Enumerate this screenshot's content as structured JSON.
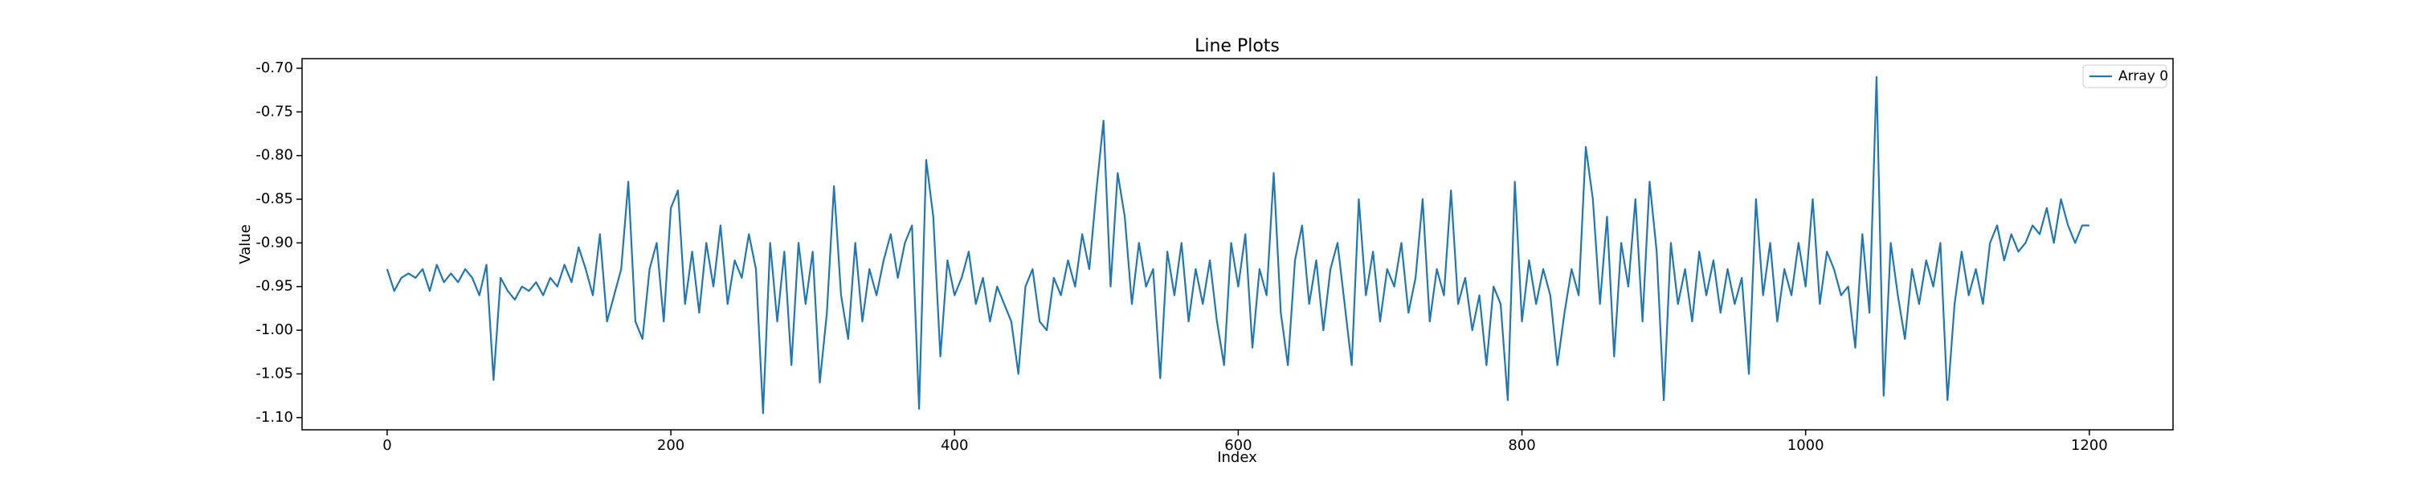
{
  "chart_data": {
    "type": "line",
    "title": "Line Plots",
    "x_label": "Index",
    "y_label": "Value",
    "legend": "upper right",
    "grid": false,
    "xlim": [
      -60,
      1259
    ],
    "ylim": [
      -1.114,
      -0.689
    ],
    "xticks": [
      0,
      200,
      400,
      600,
      800,
      1000,
      1200
    ],
    "yticks": [
      {
        "value": -0.7,
        "label": "-0.70"
      },
      {
        "value": -0.75,
        "label": "-0.75"
      },
      {
        "value": -0.8,
        "label": "-0.80"
      },
      {
        "value": -0.85,
        "label": "-0.85"
      },
      {
        "value": -0.9,
        "label": "-0.90"
      },
      {
        "value": -0.95,
        "label": "-0.95"
      },
      {
        "value": -1.0,
        "label": "-1.00"
      },
      {
        "value": -1.05,
        "label": "-1.05"
      },
      {
        "value": -1.1,
        "label": "-1.10"
      }
    ],
    "x": [
      0,
      5,
      10,
      15,
      20,
      25,
      30,
      35,
      40,
      45,
      50,
      55,
      60,
      65,
      70,
      75,
      80,
      85,
      90,
      95,
      100,
      105,
      110,
      115,
      120,
      125,
      130,
      135,
      140,
      145,
      150,
      155,
      160,
      165,
      170,
      175,
      180,
      185,
      190,
      195,
      200,
      205,
      210,
      215,
      220,
      225,
      230,
      235,
      240,
      245,
      250,
      255,
      260,
      265,
      270,
      275,
      280,
      285,
      290,
      295,
      300,
      305,
      310,
      315,
      320,
      325,
      330,
      335,
      340,
      345,
      350,
      355,
      360,
      365,
      370,
      375,
      380,
      385,
      390,
      395,
      400,
      405,
      410,
      415,
      420,
      425,
      430,
      435,
      440,
      445,
      450,
      455,
      460,
      465,
      470,
      475,
      480,
      485,
      490,
      495,
      500,
      505,
      510,
      515,
      520,
      525,
      530,
      535,
      540,
      545,
      550,
      555,
      560,
      565,
      570,
      575,
      580,
      585,
      590,
      595,
      600,
      605,
      610,
      615,
      620,
      625,
      630,
      635,
      640,
      645,
      650,
      655,
      660,
      665,
      670,
      675,
      680,
      685,
      690,
      695,
      700,
      705,
      710,
      715,
      720,
      725,
      730,
      735,
      740,
      745,
      750,
      755,
      760,
      765,
      770,
      775,
      780,
      785,
      790,
      795,
      800,
      805,
      810,
      815,
      820,
      825,
      830,
      835,
      840,
      845,
      850,
      855,
      860,
      865,
      870,
      875,
      880,
      885,
      890,
      895,
      900,
      905,
      910,
      915,
      920,
      925,
      930,
      935,
      940,
      945,
      950,
      955,
      960,
      965,
      970,
      975,
      980,
      985,
      990,
      995,
      1000,
      1005,
      1010,
      1015,
      1020,
      1025,
      1030,
      1035,
      1040,
      1045,
      1050,
      1055,
      1060,
      1065,
      1070,
      1075,
      1080,
      1085,
      1090,
      1095,
      1100,
      1105,
      1110,
      1115,
      1120,
      1125,
      1130,
      1135,
      1140,
      1145,
      1150,
      1155,
      1160,
      1165,
      1170,
      1175,
      1180,
      1185,
      1190,
      1195,
      1200
    ],
    "series": [
      {
        "name": "Array 0",
        "color": "#1f77b4",
        "values": [
          -0.93,
          -0.955,
          -0.94,
          -0.935,
          -0.94,
          -0.93,
          -0.955,
          -0.925,
          -0.945,
          -0.935,
          -0.945,
          -0.93,
          -0.94,
          -0.96,
          -0.925,
          -1.057,
          -0.94,
          -0.955,
          -0.965,
          -0.95,
          -0.955,
          -0.945,
          -0.96,
          -0.94,
          -0.95,
          -0.925,
          -0.945,
          -0.905,
          -0.93,
          -0.96,
          -0.89,
          -0.99,
          -0.96,
          -0.93,
          -0.83,
          -0.99,
          -1.01,
          -0.93,
          -0.9,
          -0.99,
          -0.86,
          -0.84,
          -0.97,
          -0.91,
          -0.98,
          -0.9,
          -0.95,
          -0.88,
          -0.97,
          -0.92,
          -0.94,
          -0.89,
          -0.93,
          -1.095,
          -0.9,
          -0.99,
          -0.91,
          -1.04,
          -0.9,
          -0.97,
          -0.91,
          -1.06,
          -0.98,
          -0.835,
          -0.96,
          -1.01,
          -0.9,
          -0.99,
          -0.93,
          -0.96,
          -0.92,
          -0.89,
          -0.94,
          -0.9,
          -0.88,
          -1.09,
          -0.805,
          -0.87,
          -1.03,
          -0.92,
          -0.96,
          -0.94,
          -0.91,
          -0.97,
          -0.94,
          -0.99,
          -0.95,
          -0.97,
          -0.99,
          -1.05,
          -0.95,
          -0.93,
          -0.99,
          -1.0,
          -0.94,
          -0.96,
          -0.92,
          -0.95,
          -0.89,
          -0.93,
          -0.84,
          -0.76,
          -0.95,
          -0.82,
          -0.87,
          -0.97,
          -0.9,
          -0.95,
          -0.93,
          -1.055,
          -0.91,
          -0.96,
          -0.9,
          -0.99,
          -0.93,
          -0.97,
          -0.92,
          -0.99,
          -1.04,
          -0.9,
          -0.95,
          -0.89,
          -1.02,
          -0.93,
          -0.96,
          -0.82,
          -0.98,
          -1.04,
          -0.92,
          -0.88,
          -0.97,
          -0.92,
          -1.0,
          -0.93,
          -0.9,
          -0.97,
          -1.04,
          -0.85,
          -0.96,
          -0.91,
          -0.99,
          -0.93,
          -0.95,
          -0.9,
          -0.98,
          -0.94,
          -0.85,
          -0.99,
          -0.93,
          -0.96,
          -0.84,
          -0.97,
          -0.94,
          -1.0,
          -0.96,
          -1.04,
          -0.95,
          -0.97,
          -1.08,
          -0.83,
          -0.99,
          -0.92,
          -0.97,
          -0.93,
          -0.96,
          -1.04,
          -0.98,
          -0.93,
          -0.96,
          -0.79,
          -0.85,
          -0.97,
          -0.87,
          -1.03,
          -0.9,
          -0.95,
          -0.85,
          -0.99,
          -0.83,
          -0.91,
          -1.08,
          -0.9,
          -0.97,
          -0.93,
          -0.99,
          -0.91,
          -0.96,
          -0.92,
          -0.98,
          -0.93,
          -0.97,
          -0.94,
          -1.05,
          -0.85,
          -0.96,
          -0.9,
          -0.99,
          -0.93,
          -0.96,
          -0.9,
          -0.95,
          -0.85,
          -0.97,
          -0.91,
          -0.93,
          -0.96,
          -0.95,
          -1.02,
          -0.89,
          -0.98,
          -0.71,
          -1.075,
          -0.9,
          -0.96,
          -1.01,
          -0.93,
          -0.97,
          -0.92,
          -0.95,
          -0.9,
          -1.08,
          -0.97,
          -0.91,
          -0.96,
          -0.93,
          -0.97,
          -0.9,
          -0.88,
          -0.92,
          -0.89,
          -0.91,
          -0.9,
          -0.88,
          -0.89,
          -0.86,
          -0.9,
          -0.85,
          -0.88,
          -0.9,
          -0.88,
          -0.88
        ]
      }
    ]
  }
}
